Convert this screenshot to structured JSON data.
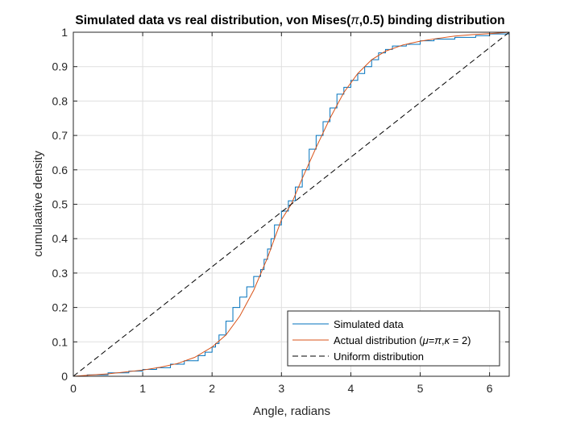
{
  "chart_data": {
    "type": "line",
    "title_parts": [
      "Simulated data vs real distribution, von Mises(",
      "π",
      ",0.5) binding distribution"
    ],
    "xlabel": "Angle, radians",
    "ylabel": "cumulaative density",
    "xlim": [
      0,
      6.2832
    ],
    "ylim": [
      0,
      1
    ],
    "xticks": [
      0,
      1,
      2,
      3,
      4,
      5,
      6
    ],
    "yticks": [
      0,
      0.1,
      0.2,
      0.3,
      0.4,
      0.5,
      0.6,
      0.7,
      0.8,
      0.9,
      1
    ],
    "xtick_labels": [
      "0",
      "1",
      "2",
      "3",
      "4",
      "5",
      "6"
    ],
    "ytick_labels": [
      "0",
      "0.1",
      "0.2",
      "0.3",
      "0.4",
      "0.5",
      "0.6",
      "0.7",
      "0.8",
      "0.9",
      "1"
    ],
    "grid": true,
    "legend_position": "bottom-right",
    "series": [
      {
        "name": "Simulated data",
        "color": "#0072BD",
        "style": "solid",
        "x": [
          0,
          0.2,
          0.5,
          0.8,
          1.0,
          1.2,
          1.4,
          1.6,
          1.8,
          1.9,
          2.0,
          2.05,
          2.1,
          2.2,
          2.3,
          2.4,
          2.5,
          2.6,
          2.7,
          2.75,
          2.8,
          2.85,
          2.9,
          3.0,
          3.1,
          3.2,
          3.3,
          3.4,
          3.5,
          3.6,
          3.7,
          3.8,
          3.9,
          4.0,
          4.1,
          4.2,
          4.3,
          4.4,
          4.5,
          4.6,
          4.8,
          5.0,
          5.2,
          5.5,
          5.8,
          6.0,
          6.2832
        ],
        "y": [
          0,
          0.004,
          0.01,
          0.015,
          0.02,
          0.025,
          0.035,
          0.045,
          0.06,
          0.07,
          0.085,
          0.095,
          0.12,
          0.16,
          0.2,
          0.23,
          0.26,
          0.29,
          0.31,
          0.34,
          0.37,
          0.4,
          0.44,
          0.48,
          0.51,
          0.55,
          0.6,
          0.66,
          0.7,
          0.74,
          0.78,
          0.82,
          0.84,
          0.86,
          0.88,
          0.9,
          0.92,
          0.94,
          0.95,
          0.96,
          0.965,
          0.975,
          0.98,
          0.985,
          0.99,
          0.995,
          1
        ]
      },
      {
        "name": "Actual distribution (μ=π,κ = 2)",
        "name_parts": [
          "Actual distribution (",
          "μ",
          "=",
          "π",
          ",",
          "κ",
          " = 2)"
        ],
        "color": "#D95319",
        "style": "solid",
        "x": [
          0,
          0.5,
          1.0,
          1.25,
          1.5,
          1.75,
          2.0,
          2.2,
          2.4,
          2.6,
          2.8,
          2.9,
          3.0,
          3.1416,
          3.3,
          3.5,
          3.7,
          3.9,
          4.1,
          4.3,
          4.5,
          4.75,
          5.0,
          5.25,
          5.5,
          5.75,
          6.0,
          6.2832
        ],
        "y": [
          0,
          0.007,
          0.018,
          0.026,
          0.037,
          0.055,
          0.085,
          0.12,
          0.175,
          0.25,
          0.345,
          0.4,
          0.455,
          0.5,
          0.575,
          0.665,
          0.75,
          0.825,
          0.88,
          0.92,
          0.945,
          0.963,
          0.974,
          0.982,
          0.989,
          0.993,
          0.996,
          1
        ]
      },
      {
        "name": "Uniform distribution",
        "color": "#000000",
        "style": "dashed",
        "x": [
          0,
          6.2832
        ],
        "y": [
          0,
          1
        ]
      }
    ]
  }
}
